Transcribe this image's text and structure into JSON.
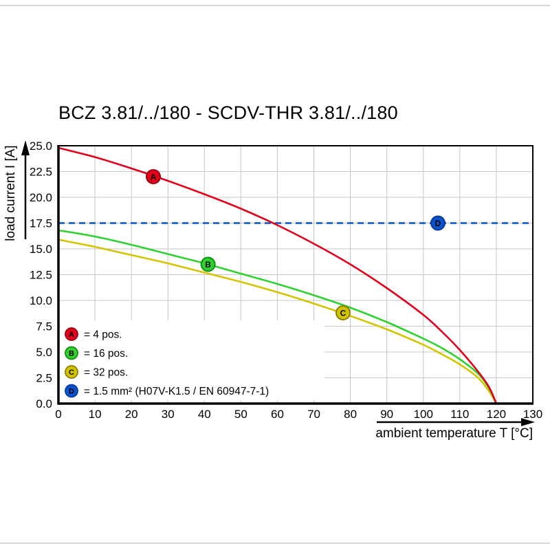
{
  "page": {
    "title": "BCZ 3.81/../180 - SCDV-THR 3.81/../180"
  },
  "chart_data": {
    "type": "line",
    "title": "BCZ 3.81/../180 - SCDV-THR 3.81/../180",
    "xlabel": "ambient temperature T [°C]",
    "ylabel": "load current I [A]",
    "xlim": [
      0,
      130
    ],
    "ylim": [
      0,
      25
    ],
    "xtick_labels": [
      "0",
      "10",
      "20",
      "30",
      "40",
      "50",
      "60",
      "70",
      "80",
      "90",
      "100",
      "110",
      "120",
      "130"
    ],
    "ytick_labels": [
      "0.0",
      "2.5",
      "5.0",
      "7.5",
      "10.0",
      "12.5",
      "15.0",
      "17.5",
      "20.0",
      "22.5",
      "25.0"
    ],
    "grid": true,
    "grid_color": "#c6c6c6",
    "legend_position": "bottom-left-inside",
    "series": [
      {
        "id": "A",
        "label": "= 4 pos.",
        "color": "#e2001a",
        "marker_border": "#9b0013",
        "style": "solid",
        "marker": {
          "x": 26,
          "y": 22.0
        },
        "points": [
          [
            0,
            24.8
          ],
          [
            10,
            23.9
          ],
          [
            20,
            22.8
          ],
          [
            30,
            21.6
          ],
          [
            40,
            20.3
          ],
          [
            50,
            18.9
          ],
          [
            60,
            17.3
          ],
          [
            70,
            15.5
          ],
          [
            80,
            13.5
          ],
          [
            90,
            11.2
          ],
          [
            100,
            8.6
          ],
          [
            105,
            7.0
          ],
          [
            110,
            5.2
          ],
          [
            115,
            3.1
          ],
          [
            118,
            1.6
          ],
          [
            120,
            0
          ]
        ]
      },
      {
        "id": "B",
        "label": "= 16 pos.",
        "color": "#2fd02f",
        "marker_border": "#0f8f0f",
        "style": "solid",
        "marker": {
          "x": 41,
          "y": 13.5
        },
        "points": [
          [
            0,
            16.8
          ],
          [
            10,
            16.2
          ],
          [
            20,
            15.4
          ],
          [
            30,
            14.5
          ],
          [
            40,
            13.6
          ],
          [
            50,
            12.6
          ],
          [
            60,
            11.6
          ],
          [
            70,
            10.5
          ],
          [
            80,
            9.3
          ],
          [
            90,
            7.9
          ],
          [
            100,
            6.3
          ],
          [
            105,
            5.4
          ],
          [
            110,
            4.3
          ],
          [
            115,
            2.9
          ],
          [
            118,
            1.5
          ],
          [
            120,
            0
          ]
        ]
      },
      {
        "id": "C",
        "label": "= 32 pos.",
        "color": "#d4c400",
        "marker_border": "#8a7f00",
        "style": "solid",
        "marker": {
          "x": 78,
          "y": 8.8
        },
        "points": [
          [
            0,
            15.9
          ],
          [
            10,
            15.2
          ],
          [
            20,
            14.4
          ],
          [
            30,
            13.6
          ],
          [
            40,
            12.7
          ],
          [
            50,
            11.8
          ],
          [
            60,
            10.8
          ],
          [
            70,
            9.7
          ],
          [
            80,
            8.5
          ],
          [
            90,
            7.2
          ],
          [
            100,
            5.7
          ],
          [
            105,
            4.8
          ],
          [
            110,
            3.8
          ],
          [
            115,
            2.5
          ],
          [
            118,
            1.2
          ],
          [
            120,
            0
          ]
        ]
      },
      {
        "id": "D",
        "label": "= 1.5 mm² (H07V-K1.5 / EN 60947-7-1)",
        "color": "#0a52cc",
        "marker_border": "#083a99",
        "style": "dashed",
        "marker": {
          "x": 104,
          "y": 17.5
        },
        "points": [
          [
            0,
            17.5
          ],
          [
            130,
            17.5
          ]
        ]
      }
    ]
  }
}
